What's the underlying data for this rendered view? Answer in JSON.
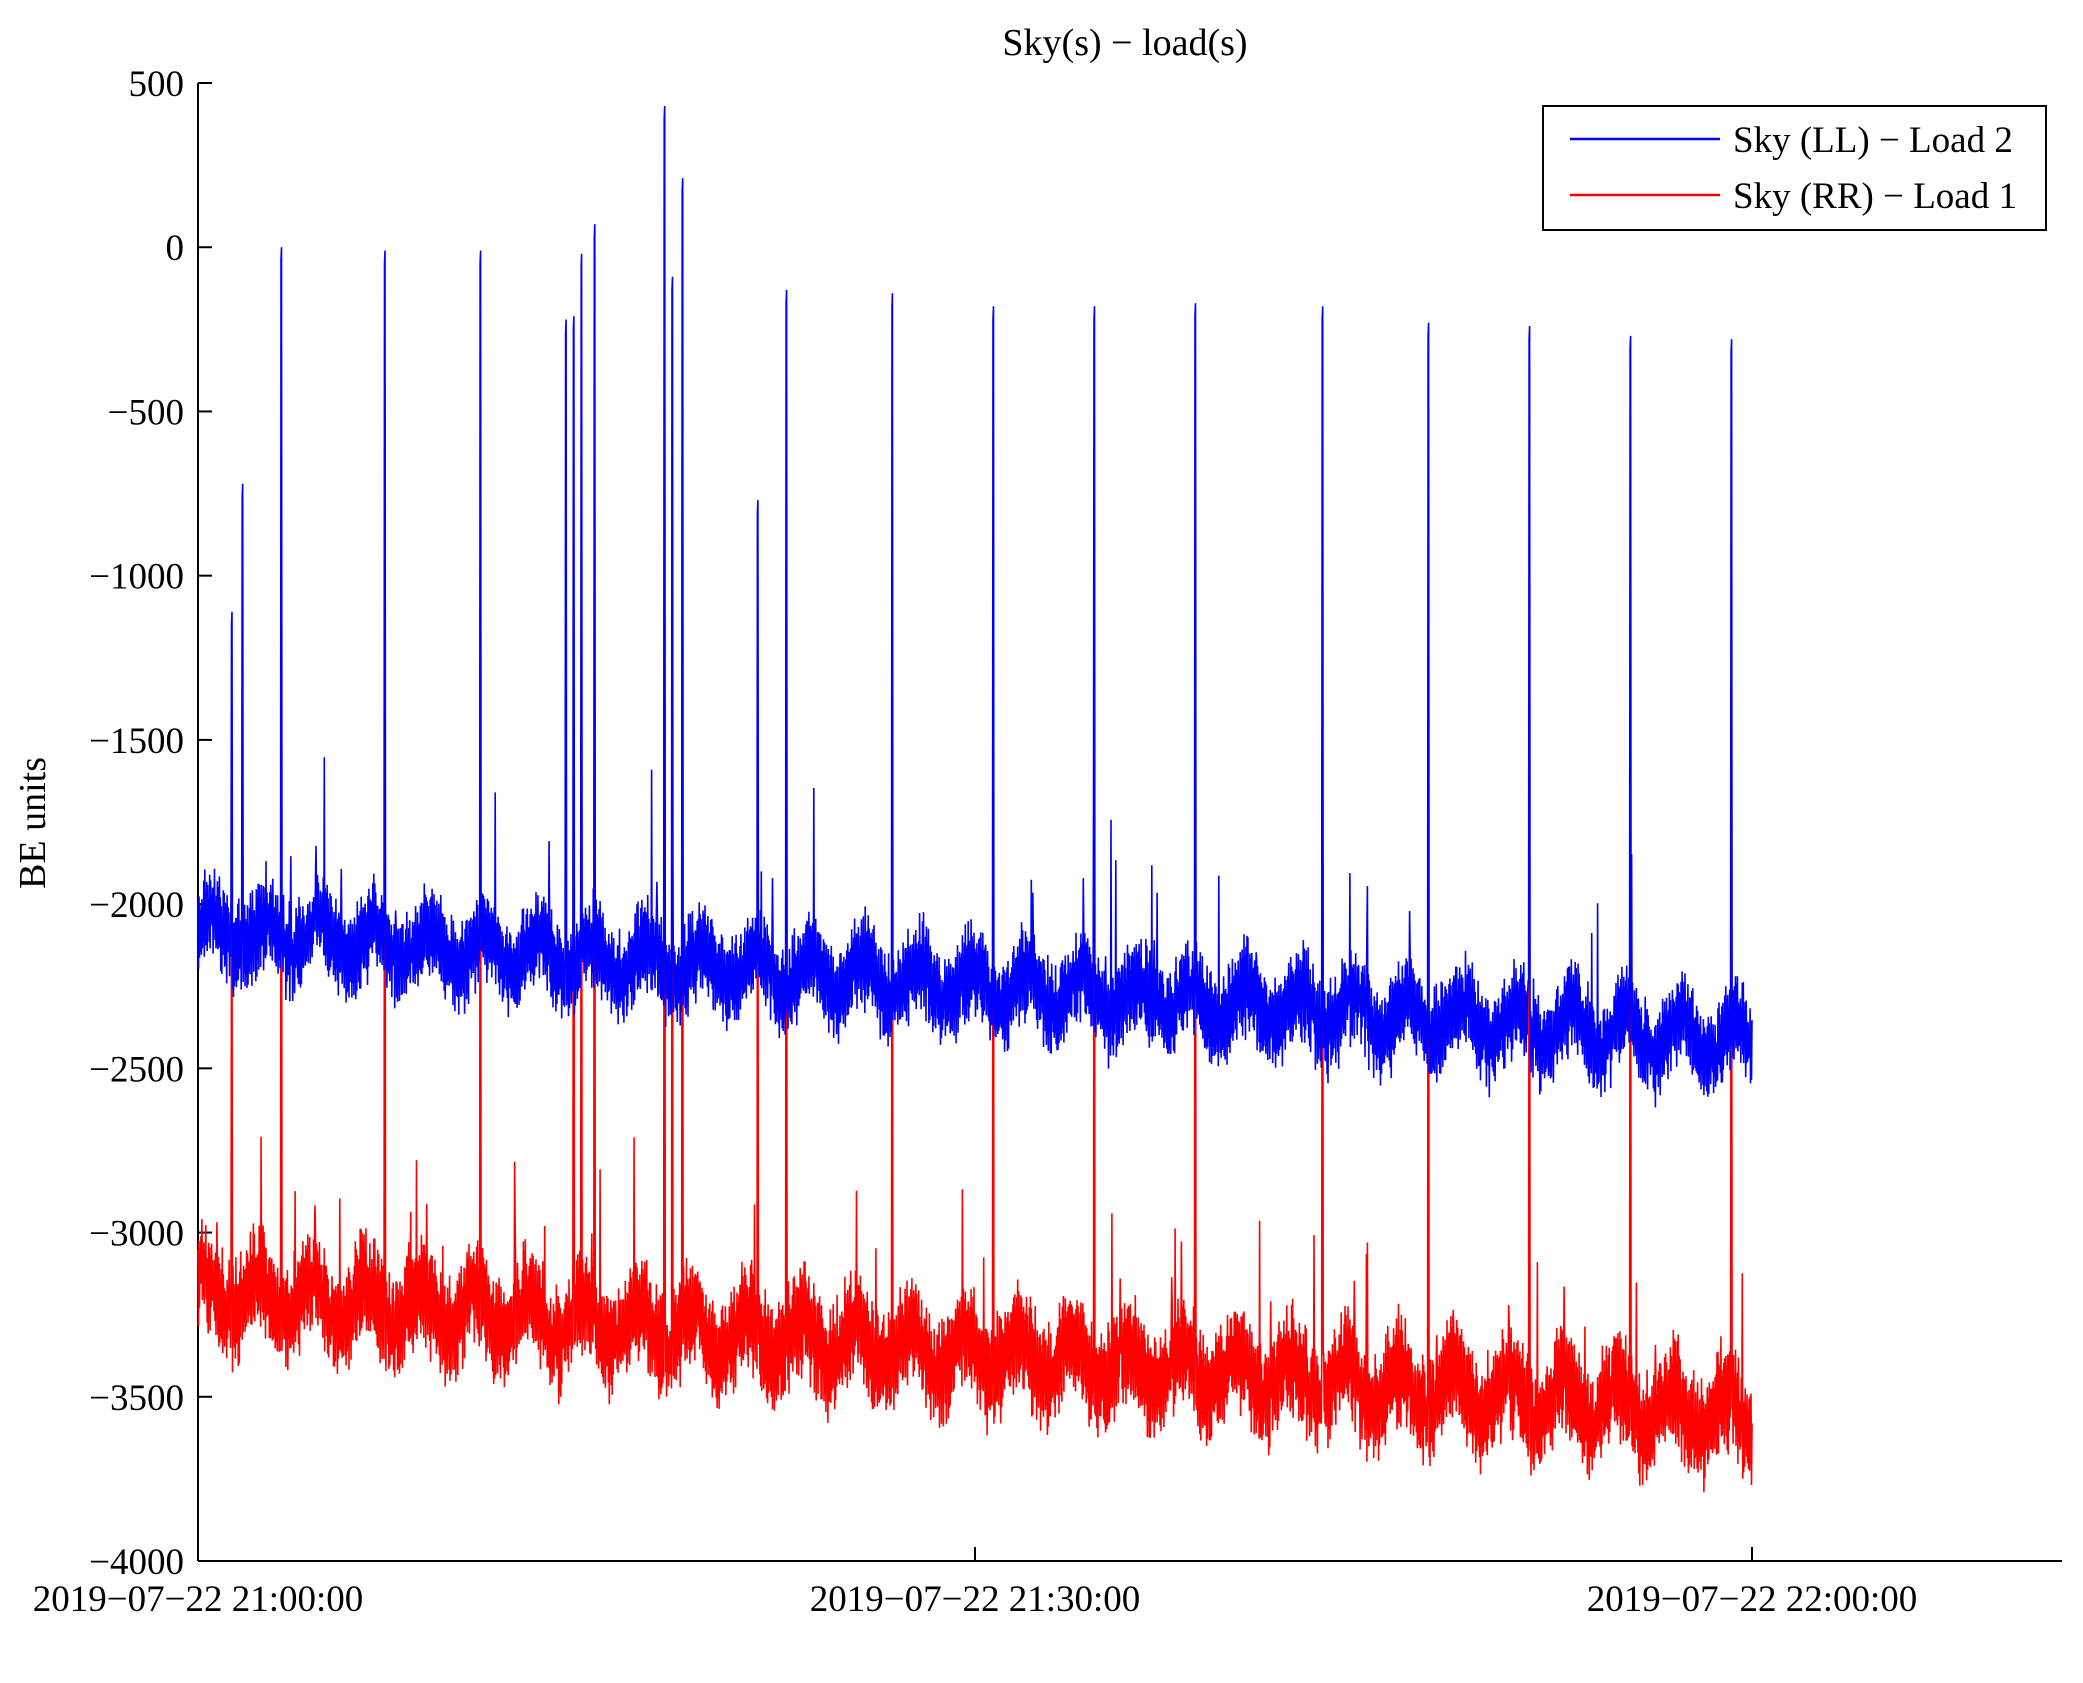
{
  "chart_data": {
    "type": "line",
    "title": "Sky(s) − load(s)",
    "xlabel": "",
    "ylabel": "BE units",
    "ylim": [
      -4000,
      500
    ],
    "yticks": [
      500,
      0,
      -500,
      -1000,
      -1500,
      -2000,
      -2500,
      -3000,
      -3500,
      -4000
    ],
    "ytick_labels": [
      "500",
      "0",
      "−500",
      "−1000",
      "−1500",
      "−2000",
      "−2500",
      "−3000",
      "−3500",
      "−4000"
    ],
    "x_unit": "minutes after 2019-07-22 21:00:00",
    "xlim": [
      0,
      70
    ],
    "xticks": [
      0,
      30,
      60
    ],
    "xtick_labels": [
      "2019−07−22 21:00:00",
      "2019−07−22 21:30:00",
      "2019−07−22 22:00:00"
    ],
    "data_end_minute": 60,
    "legend_location": "top-right",
    "series": [
      {
        "name": "Sky (LL) − Load 2",
        "color": "#0000ff",
        "baseline_start": -2080,
        "baseline_end": -2420,
        "oscillation_amplitude": 130,
        "noise": 40,
        "baseline_spikes": [
          {
            "minute": 3.2,
            "value": -40
          },
          {
            "minute": 7.2,
            "value": -50
          },
          {
            "minute": 10.9,
            "value": -50
          },
          {
            "minute": 14.5,
            "value": -250
          },
          {
            "minute": 14.8,
            "value": -60
          },
          {
            "minute": 18.0,
            "value": 390
          },
          {
            "minute": 18.3,
            "value": -130
          },
          {
            "minute": 18.7,
            "value": 170
          },
          {
            "minute": 22.7,
            "value": -170
          },
          {
            "minute": 26.8,
            "value": -180
          },
          {
            "minute": 30.7,
            "value": -220
          },
          {
            "minute": 34.6,
            "value": -220
          },
          {
            "minute": 38.5,
            "value": -210
          },
          {
            "minute": 43.4,
            "value": -220
          },
          {
            "minute": 47.5,
            "value": -270
          },
          {
            "minute": 51.4,
            "value": -280
          },
          {
            "minute": 55.3,
            "value": -310
          },
          {
            "minute": 59.2,
            "value": -320
          }
        ],
        "secondary_spikes": [
          {
            "minute": 1.3,
            "value": -1150
          },
          {
            "minute": 1.7,
            "value": -760
          },
          {
            "minute": 14.2,
            "value": -260
          },
          {
            "minute": 15.3,
            "value": 30
          },
          {
            "minute": 21.6,
            "value": -810
          }
        ]
      },
      {
        "name": "Sky (RR) − Load 1",
        "color": "#ff0000",
        "baseline_start": -3180,
        "baseline_end": -3560,
        "oscillation_amplitude": 150,
        "noise": 45,
        "baseline_spikes": [
          {
            "minute": 3.2,
            "value": -1290
          },
          {
            "minute": 7.2,
            "value": -1290
          },
          {
            "minute": 10.9,
            "value": -1260
          },
          {
            "minute": 14.5,
            "value": -1300
          },
          {
            "minute": 14.8,
            "value": -1290
          },
          {
            "minute": 18.0,
            "value": -410
          },
          {
            "minute": 18.3,
            "value": -1330
          },
          {
            "minute": 18.7,
            "value": -650
          },
          {
            "minute": 22.7,
            "value": -1450
          },
          {
            "minute": 26.8,
            "value": -1450
          },
          {
            "minute": 30.7,
            "value": -1450
          },
          {
            "minute": 34.6,
            "value": -1470
          },
          {
            "minute": 38.5,
            "value": -1460
          },
          {
            "minute": 43.4,
            "value": -1480
          },
          {
            "minute": 47.5,
            "value": -1550
          },
          {
            "minute": 51.4,
            "value": -1570
          },
          {
            "minute": 55.3,
            "value": -1590
          },
          {
            "minute": 59.2,
            "value": -1590
          }
        ],
        "secondary_spikes": [
          {
            "minute": 1.3,
            "value": -2100
          },
          {
            "minute": 15.3,
            "value": -900
          },
          {
            "minute": 21.6,
            "value": -1700
          }
        ]
      }
    ]
  }
}
